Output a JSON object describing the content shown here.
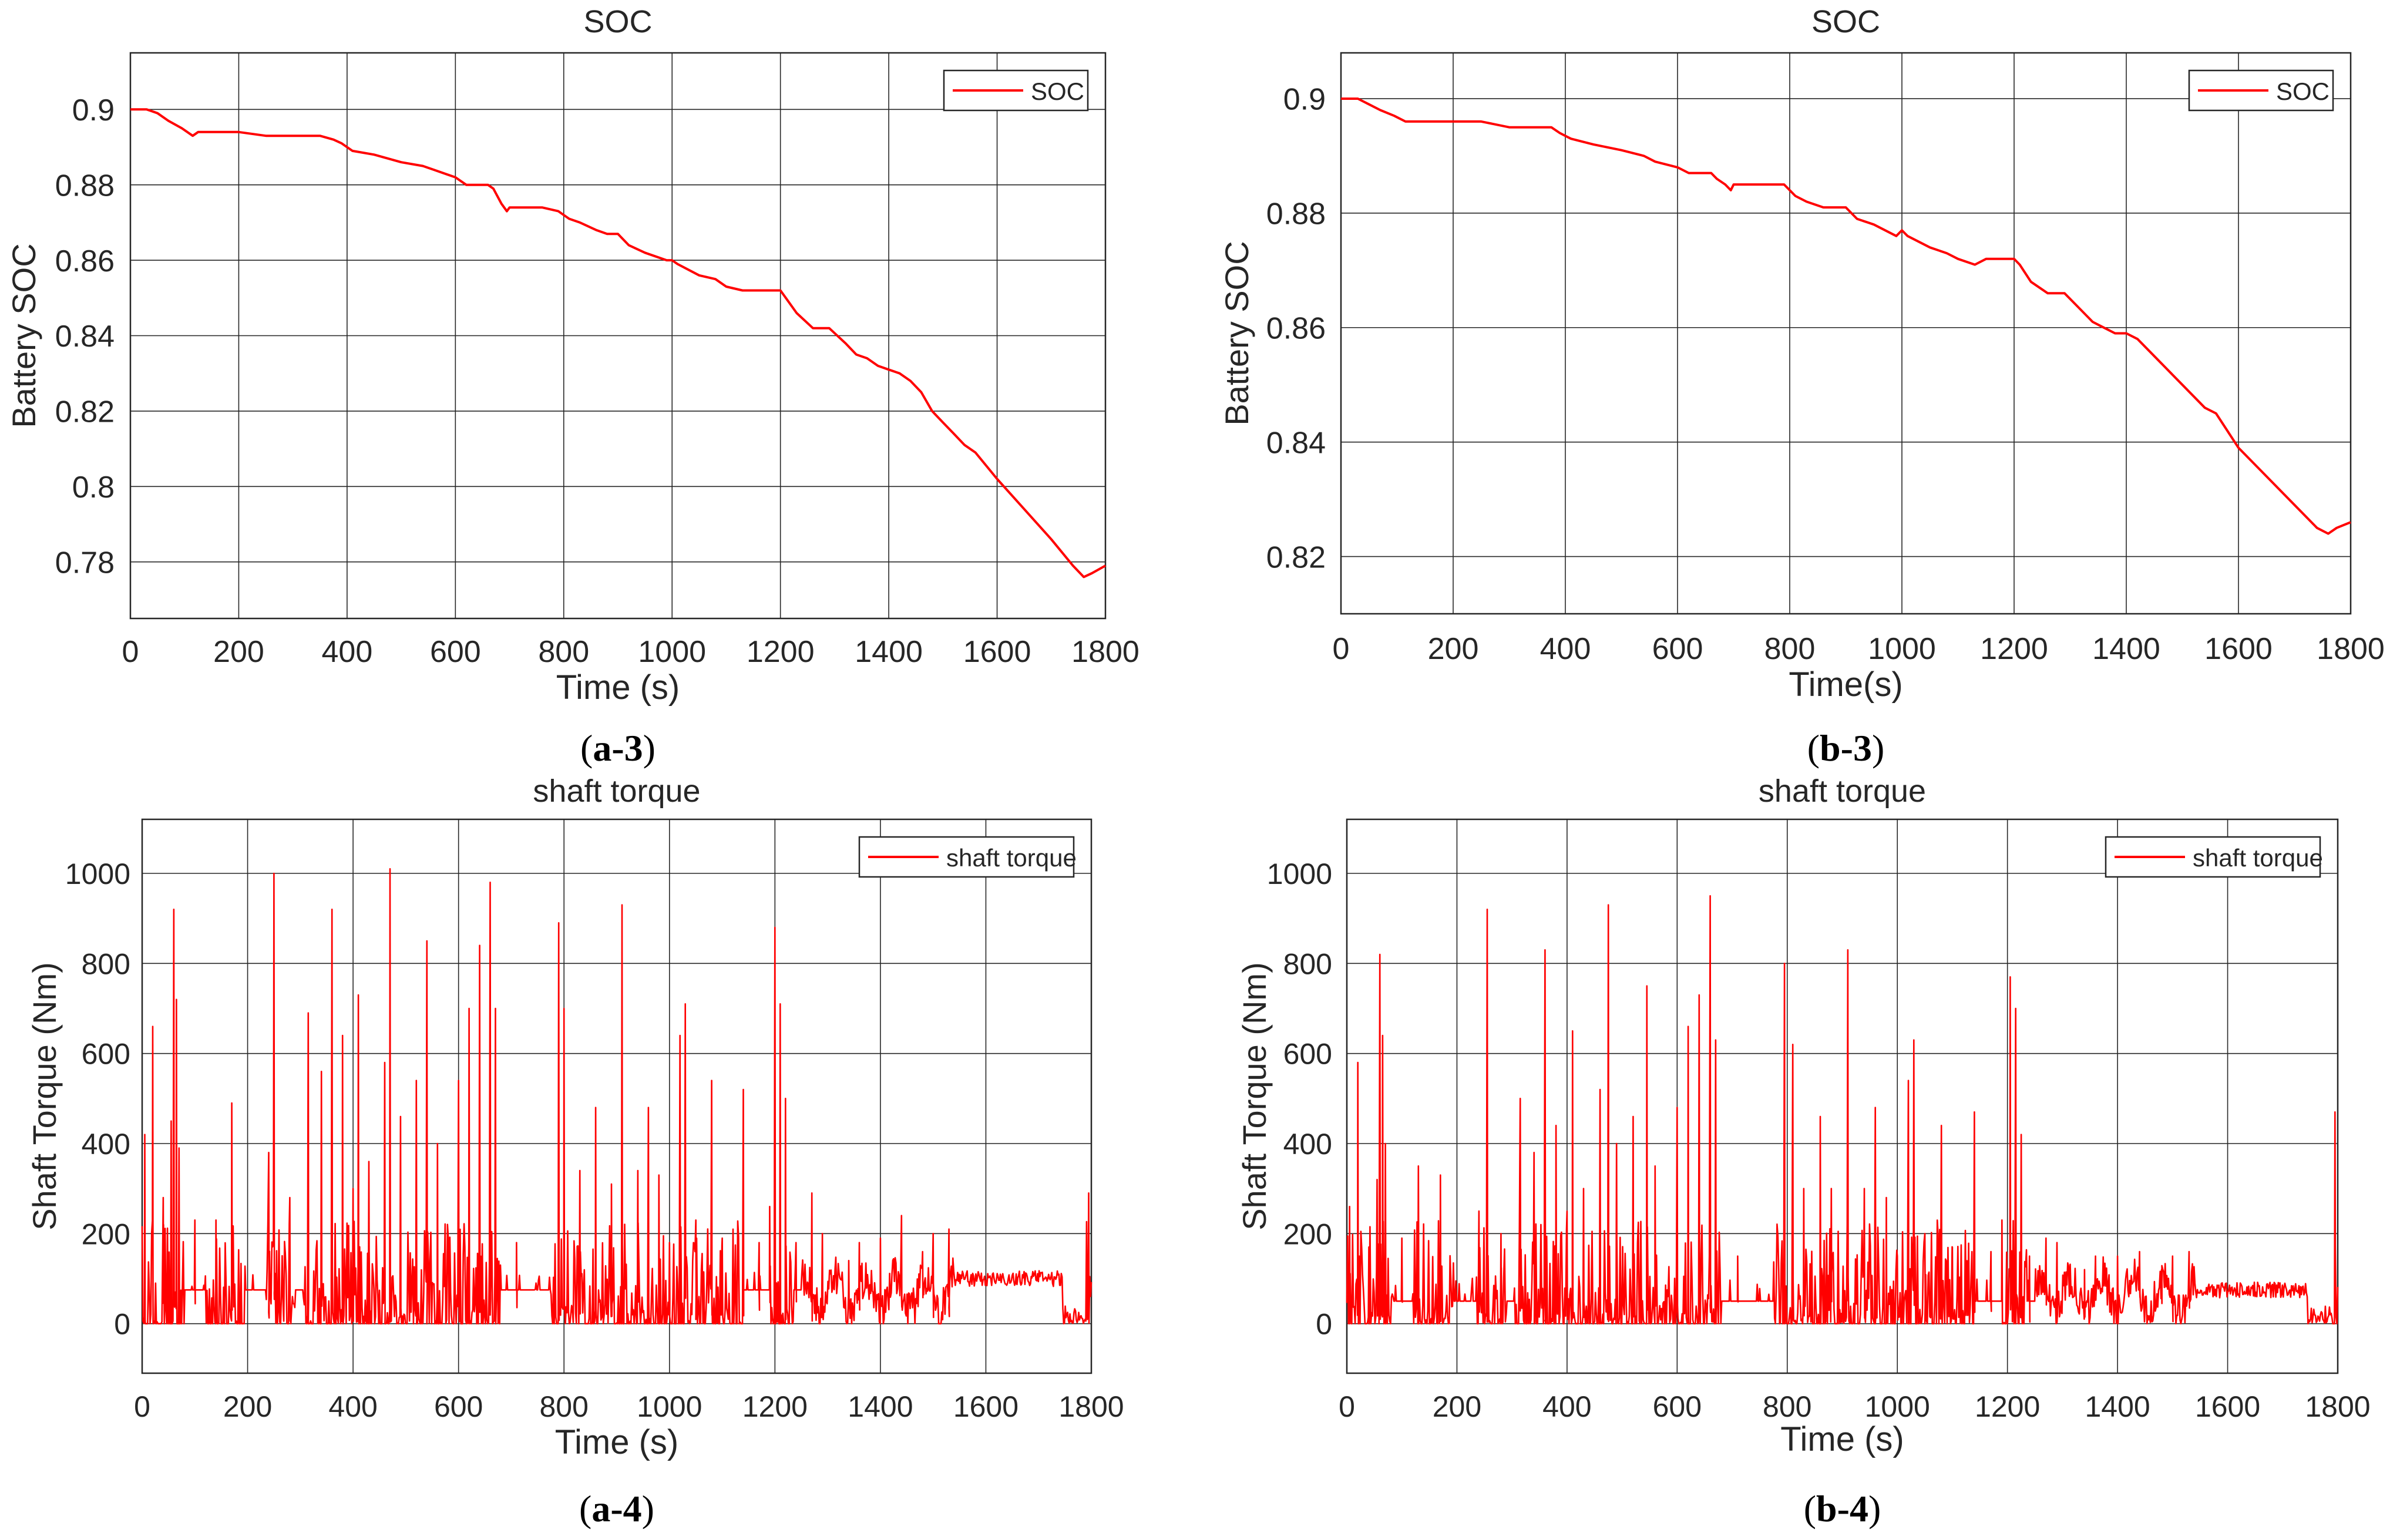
{
  "chart_data": [
    {
      "id": "a-3",
      "type": "line",
      "title": "SOC",
      "xlabel": "Time (s)",
      "ylabel": "Battery SOC",
      "caption": {
        "pre": "(",
        "bold": "a-3",
        "post": ")"
      },
      "xlim": [
        0,
        1800
      ],
      "ylim": [
        0.765,
        0.915
      ],
      "xticks": [
        0,
        200,
        400,
        600,
        800,
        1000,
        1200,
        1400,
        1600,
        1800
      ],
      "yticks": [
        0.78,
        0.8,
        0.82,
        0.84,
        0.86,
        0.88,
        0.9
      ],
      "ytick_labels": [
        "0.78",
        "0.8",
        "0.82",
        "0.84",
        "0.86",
        "0.88",
        "0.9"
      ],
      "grid": true,
      "legend": {
        "position": "top-right",
        "entries": [
          "SOC"
        ]
      },
      "series": [
        {
          "name": "SOC",
          "color": "#ff0000",
          "x": [
            0,
            30,
            50,
            70,
            95,
            115,
            125,
            150,
            200,
            250,
            300,
            350,
            375,
            390,
            410,
            450,
            500,
            540,
            560,
            600,
            620,
            660,
            670,
            685,
            695,
            700,
            760,
            790,
            810,
            830,
            860,
            880,
            900,
            920,
            950,
            990,
            1000,
            1010,
            1050,
            1080,
            1100,
            1130,
            1150,
            1200,
            1210,
            1230,
            1260,
            1290,
            1320,
            1340,
            1360,
            1380,
            1400,
            1420,
            1440,
            1460,
            1480,
            1500,
            1520,
            1540,
            1560,
            1600,
            1650,
            1700,
            1740,
            1760,
            1775,
            1800
          ],
          "y": [
            0.9,
            0.9,
            0.899,
            0.897,
            0.895,
            0.893,
            0.894,
            0.894,
            0.894,
            0.893,
            0.893,
            0.893,
            0.892,
            0.891,
            0.889,
            0.888,
            0.886,
            0.885,
            0.884,
            0.882,
            0.88,
            0.88,
            0.879,
            0.875,
            0.873,
            0.874,
            0.874,
            0.873,
            0.871,
            0.87,
            0.868,
            0.867,
            0.867,
            0.864,
            0.862,
            0.86,
            0.86,
            0.859,
            0.856,
            0.855,
            0.853,
            0.852,
            0.852,
            0.852,
            0.85,
            0.846,
            0.842,
            0.842,
            0.838,
            0.835,
            0.834,
            0.832,
            0.831,
            0.83,
            0.828,
            0.825,
            0.82,
            0.817,
            0.814,
            0.811,
            0.809,
            0.802,
            0.794,
            0.786,
            0.779,
            0.776,
            0.777,
            0.779
          ]
        }
      ]
    },
    {
      "id": "b-3",
      "type": "line",
      "title": "SOC",
      "xlabel": "Time(s)",
      "ylabel": "Battery SOC",
      "caption": {
        "pre": "(",
        "bold": "b-3",
        "post": ")"
      },
      "xlim": [
        0,
        1800
      ],
      "ylim": [
        0.81,
        0.908
      ],
      "xticks": [
        0,
        200,
        400,
        600,
        800,
        1000,
        1200,
        1400,
        1600,
        1800
      ],
      "yticks": [
        0.82,
        0.84,
        0.86,
        0.88,
        0.9
      ],
      "ytick_labels": [
        "0.82",
        "0.84",
        "0.86",
        "0.88",
        "0.9"
      ],
      "grid": true,
      "legend": {
        "position": "top-right",
        "entries": [
          "SOC"
        ]
      },
      "series": [
        {
          "name": "SOC",
          "color": "#ff0000",
          "x": [
            0,
            30,
            50,
            70,
            95,
            115,
            125,
            150,
            200,
            250,
            300,
            350,
            375,
            390,
            410,
            450,
            500,
            540,
            560,
            600,
            620,
            660,
            670,
            685,
            695,
            700,
            760,
            790,
            810,
            830,
            860,
            880,
            900,
            920,
            950,
            990,
            1000,
            1010,
            1050,
            1080,
            1100,
            1130,
            1150,
            1200,
            1210,
            1230,
            1260,
            1290,
            1320,
            1340,
            1360,
            1380,
            1400,
            1420,
            1440,
            1460,
            1480,
            1500,
            1520,
            1540,
            1560,
            1600,
            1650,
            1700,
            1740,
            1760,
            1775,
            1800
          ],
          "y": [
            0.9,
            0.9,
            0.899,
            0.898,
            0.897,
            0.896,
            0.896,
            0.896,
            0.896,
            0.896,
            0.895,
            0.895,
            0.895,
            0.894,
            0.893,
            0.892,
            0.891,
            0.89,
            0.889,
            0.888,
            0.887,
            0.887,
            0.886,
            0.885,
            0.884,
            0.885,
            0.885,
            0.885,
            0.883,
            0.882,
            0.881,
            0.881,
            0.881,
            0.879,
            0.878,
            0.876,
            0.877,
            0.876,
            0.874,
            0.873,
            0.872,
            0.871,
            0.872,
            0.872,
            0.871,
            0.868,
            0.866,
            0.866,
            0.863,
            0.861,
            0.86,
            0.859,
            0.859,
            0.858,
            0.856,
            0.854,
            0.852,
            0.85,
            0.848,
            0.846,
            0.845,
            0.839,
            0.834,
            0.829,
            0.825,
            0.824,
            0.825,
            0.826
          ]
        }
      ]
    },
    {
      "id": "a-4",
      "type": "line",
      "title": "shaft torque",
      "xlabel": "Time (s)",
      "ylabel": "Shaft Torque (Nm)",
      "caption": {
        "pre": "(",
        "bold": "a-4",
        "post": ")"
      },
      "xlim": [
        0,
        1800
      ],
      "ylim": [
        -110,
        1120
      ],
      "xticks": [
        0,
        200,
        400,
        600,
        800,
        1000,
        1200,
        1400,
        1600,
        1800
      ],
      "yticks": [
        0,
        200,
        400,
        600,
        800,
        1000
      ],
      "ytick_labels": [
        "0",
        "200",
        "400",
        "600",
        "800",
        "1000"
      ],
      "grid": true,
      "legend": {
        "position": "top-right",
        "entries": [
          "shaft torque"
        ]
      },
      "series": [
        {
          "name": "shaft torque",
          "color": "#ff0000",
          "peaks": [
            [
              5,
              420
            ],
            [
              20,
              660
            ],
            [
              40,
              280
            ],
            [
              55,
              450
            ],
            [
              60,
              920
            ],
            [
              65,
              720
            ],
            [
              70,
              390
            ],
            [
              100,
              230
            ],
            [
              140,
              230
            ],
            [
              170,
              490
            ],
            [
              240,
              380
            ],
            [
              250,
              1000
            ],
            [
              280,
              280
            ],
            [
              315,
              690
            ],
            [
              340,
              560
            ],
            [
              360,
              920
            ],
            [
              380,
              640
            ],
            [
              400,
              300
            ],
            [
              410,
              730
            ],
            [
              430,
              360
            ],
            [
              460,
              580
            ],
            [
              470,
              1010
            ],
            [
              490,
              460
            ],
            [
              520,
              540
            ],
            [
              540,
              850
            ],
            [
              560,
              400
            ],
            [
              600,
              540
            ],
            [
              620,
              700
            ],
            [
              640,
              840
            ],
            [
              660,
              980
            ],
            [
              670,
              700
            ],
            [
              710,
              180
            ],
            [
              790,
              890
            ],
            [
              800,
              700
            ],
            [
              830,
              340
            ],
            [
              860,
              480
            ],
            [
              890,
              310
            ],
            [
              910,
              930
            ],
            [
              940,
              340
            ],
            [
              960,
              480
            ],
            [
              980,
              330
            ],
            [
              1000,
              180
            ],
            [
              1020,
              640
            ],
            [
              1030,
              710
            ],
            [
              1050,
              230
            ],
            [
              1080,
              540
            ],
            [
              1100,
              190
            ],
            [
              1140,
              520
            ],
            [
              1170,
              180
            ],
            [
              1190,
              260
            ],
            [
              1200,
              880
            ],
            [
              1210,
              710
            ],
            [
              1220,
              500
            ],
            [
              1240,
              180
            ],
            [
              1270,
              290
            ],
            [
              1290,
              200
            ],
            [
              1340,
              140
            ],
            [
              1360,
              180
            ],
            [
              1400,
              190
            ],
            [
              1440,
              240
            ],
            [
              1480,
              160
            ],
            [
              1500,
              200
            ],
            [
              1530,
              210
            ],
            [
              1795,
              290
            ]
          ],
          "baseline": {
            "flat_level": 75,
            "cruise_range": [
              1540,
              1745
            ],
            "cruise_level": 100
          }
        }
      ]
    },
    {
      "id": "b-4",
      "type": "line",
      "title": "shaft torque",
      "xlabel": "Time (s)",
      "ylabel": "Shaft Torque (Nm)",
      "caption": {
        "pre": "(",
        "bold": "b-4",
        "post": ")"
      },
      "xlim": [
        0,
        1800
      ],
      "ylim": [
        -110,
        1120
      ],
      "xticks": [
        0,
        200,
        400,
        600,
        800,
        1000,
        1200,
        1400,
        1600,
        1800
      ],
      "yticks": [
        0,
        200,
        400,
        600,
        800,
        1000
      ],
      "ytick_labels": [
        "0",
        "200",
        "400",
        "600",
        "800",
        "1000"
      ],
      "grid": true,
      "legend": {
        "position": "top-right",
        "entries": [
          "shaft torque"
        ]
      },
      "series": [
        {
          "name": "shaft torque",
          "color": "#ff0000",
          "peaks": [
            [
              5,
              260
            ],
            [
              20,
              580
            ],
            [
              40,
              170
            ],
            [
              55,
              320
            ],
            [
              60,
              820
            ],
            [
              65,
              640
            ],
            [
              70,
              400
            ],
            [
              100,
              190
            ],
            [
              130,
              350
            ],
            [
              170,
              330
            ],
            [
              240,
              250
            ],
            [
              255,
              920
            ],
            [
              280,
              200
            ],
            [
              315,
              500
            ],
            [
              340,
              380
            ],
            [
              360,
              830
            ],
            [
              380,
              440
            ],
            [
              400,
              250
            ],
            [
              410,
              650
            ],
            [
              430,
              300
            ],
            [
              460,
              520
            ],
            [
              475,
              930
            ],
            [
              490,
              400
            ],
            [
              520,
              460
            ],
            [
              545,
              750
            ],
            [
              560,
              350
            ],
            [
              600,
              480
            ],
            [
              620,
              660
            ],
            [
              640,
              730
            ],
            [
              660,
              950
            ],
            [
              670,
              630
            ],
            [
              710,
              150
            ],
            [
              795,
              800
            ],
            [
              810,
              620
            ],
            [
              830,
              300
            ],
            [
              860,
              460
            ],
            [
              880,
              300
            ],
            [
              910,
              830
            ],
            [
              940,
              300
            ],
            [
              960,
              480
            ],
            [
              980,
              280
            ],
            [
              1000,
              150
            ],
            [
              1020,
              540
            ],
            [
              1030,
              630
            ],
            [
              1050,
              200
            ],
            [
              1080,
              440
            ],
            [
              1100,
              170
            ],
            [
              1140,
              470
            ],
            [
              1170,
              160
            ],
            [
              1190,
              230
            ],
            [
              1205,
              770
            ],
            [
              1215,
              700
            ],
            [
              1225,
              420
            ],
            [
              1240,
              150
            ],
            [
              1270,
              190
            ],
            [
              1290,
              180
            ],
            [
              1340,
              120
            ],
            [
              1360,
              150
            ],
            [
              1400,
              150
            ],
            [
              1440,
              160
            ],
            [
              1480,
              120
            ],
            [
              1500,
              150
            ],
            [
              1530,
              160
            ],
            [
              1795,
              470
            ]
          ],
          "baseline": {
            "flat_level": 50,
            "cruise_range": [
              1540,
              1745
            ],
            "cruise_level": 75
          }
        }
      ]
    }
  ]
}
